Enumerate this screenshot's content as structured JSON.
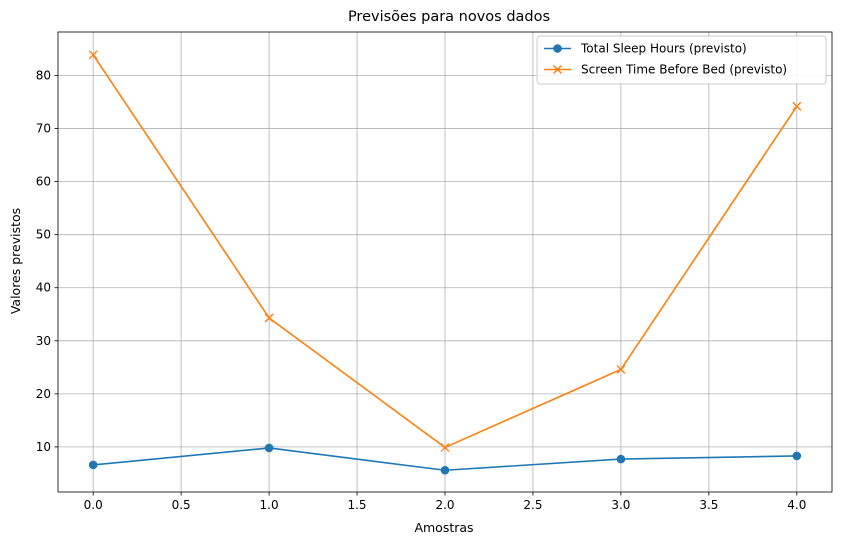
{
  "chart_data": {
    "type": "line",
    "title": "Previsões para novos dados",
    "xlabel": "Amostras",
    "ylabel": "Valores previstos",
    "x": [
      0,
      1,
      2,
      3,
      4
    ],
    "xlim": [
      -0.2,
      4.2
    ],
    "ylim": [
      1.5,
      88.2
    ],
    "xticks": [
      0.0,
      0.5,
      1.0,
      1.5,
      2.0,
      2.5,
      3.0,
      3.5,
      4.0
    ],
    "xtick_labels": [
      "0.0",
      "0.5",
      "1.0",
      "1.5",
      "2.0",
      "2.5",
      "3.0",
      "3.5",
      "4.0"
    ],
    "yticks": [
      10,
      20,
      30,
      40,
      50,
      60,
      70,
      80
    ],
    "ytick_labels": [
      "10",
      "20",
      "30",
      "40",
      "50",
      "60",
      "70",
      "80"
    ],
    "grid": true,
    "legend_position": "top-right",
    "series": [
      {
        "name": "Total Sleep Hours (previsto)",
        "values": [
          6.6,
          9.8,
          5.6,
          7.7,
          8.3
        ],
        "color": "#1f77b4",
        "marker": "circle"
      },
      {
        "name": "Screen Time Before Bed (previsto)",
        "values": [
          83.9,
          34.3,
          9.9,
          24.6,
          74.2
        ],
        "color": "#ff7f0e",
        "marker": "x"
      }
    ]
  }
}
